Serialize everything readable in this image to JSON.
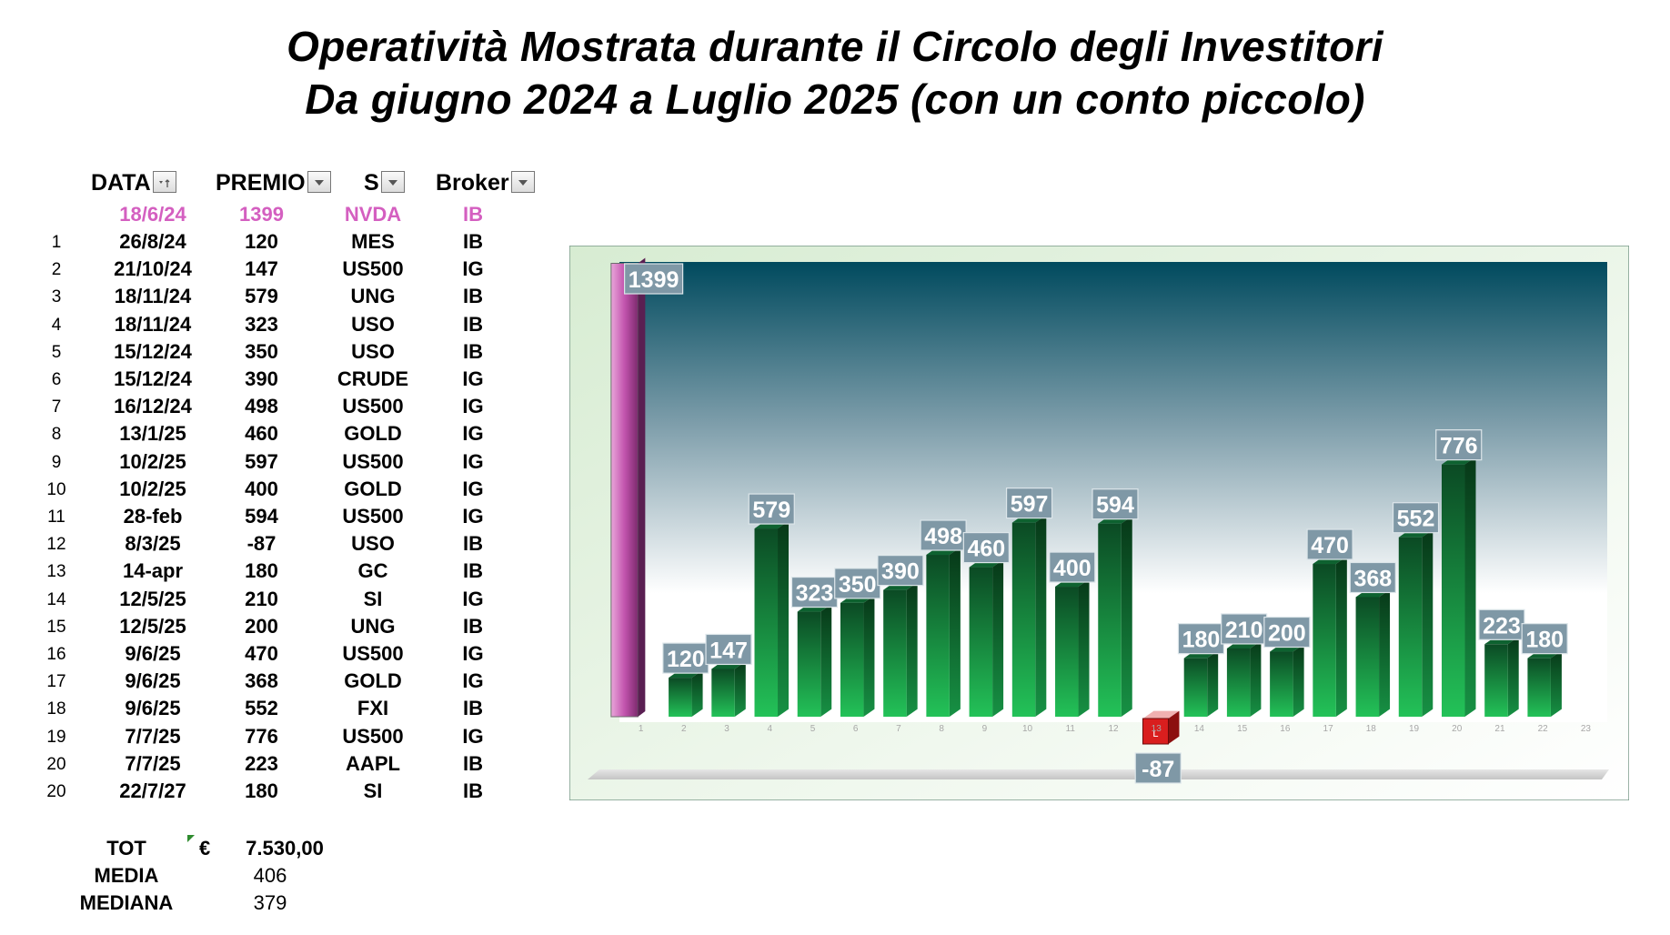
{
  "title_line1": "Operatività Mostrata durante il Circolo degli Investitori",
  "title_line2": "Da giugno 2024 a Luglio 2025 (con un conto piccolo)",
  "table": {
    "headers": {
      "date": "DATA",
      "premium": "PREMIO",
      "symbol": "S",
      "broker": "Broker"
    },
    "first_row": {
      "num": "",
      "date": "18/6/24",
      "premium": "1399",
      "symbol": "NVDA",
      "broker": "IB"
    },
    "rows": [
      {
        "num": "1",
        "date": "26/8/24",
        "premium": "120",
        "symbol": "MES",
        "broker": "IB"
      },
      {
        "num": "2",
        "date": "21/10/24",
        "premium": "147",
        "symbol": "US500",
        "broker": "IG"
      },
      {
        "num": "3",
        "date": "18/11/24",
        "premium": "579",
        "symbol": "UNG",
        "broker": "IB"
      },
      {
        "num": "4",
        "date": "18/11/24",
        "premium": "323",
        "symbol": "USO",
        "broker": "IB"
      },
      {
        "num": "5",
        "date": "15/12/24",
        "premium": "350",
        "symbol": "USO",
        "broker": "IB"
      },
      {
        "num": "6",
        "date": "15/12/24",
        "premium": "390",
        "symbol": "CRUDE",
        "broker": "IG"
      },
      {
        "num": "7",
        "date": "16/12/24",
        "premium": "498",
        "symbol": "US500",
        "broker": "IG"
      },
      {
        "num": "8",
        "date": "13/1/25",
        "premium": "460",
        "symbol": "GOLD",
        "broker": "IG"
      },
      {
        "num": "9",
        "date": "10/2/25",
        "premium": "597",
        "symbol": "US500",
        "broker": "IG"
      },
      {
        "num": "10",
        "date": "10/2/25",
        "premium": "400",
        "symbol": "GOLD",
        "broker": "IG"
      },
      {
        "num": "11",
        "date": "28-feb",
        "premium": "594",
        "symbol": "US500",
        "broker": "IG"
      },
      {
        "num": "12",
        "date": "8/3/25",
        "premium": "-87",
        "symbol": "USO",
        "broker": "IB"
      },
      {
        "num": "13",
        "date": "14-apr",
        "premium": "180",
        "symbol": "GC",
        "broker": "IB"
      },
      {
        "num": "14",
        "date": "12/5/25",
        "premium": "210",
        "symbol": "SI",
        "broker": "IG"
      },
      {
        "num": "15",
        "date": "12/5/25",
        "premium": "200",
        "symbol": "UNG",
        "broker": "IB"
      },
      {
        "num": "16",
        "date": "9/6/25",
        "premium": "470",
        "symbol": "US500",
        "broker": "IG"
      },
      {
        "num": "17",
        "date": "9/6/25",
        "premium": "368",
        "symbol": "GOLD",
        "broker": "IG"
      },
      {
        "num": "18",
        "date": "9/6/25",
        "premium": "552",
        "symbol": "FXI",
        "broker": "IB"
      },
      {
        "num": "19",
        "date": "7/7/25",
        "premium": "776",
        "symbol": "US500",
        "broker": "IG"
      },
      {
        "num": "20",
        "date": "7/7/25",
        "premium": "223",
        "symbol": "AAPL",
        "broker": "IB"
      },
      {
        "num": "20",
        "date": "22/7/27",
        "premium": "180",
        "symbol": "SI",
        "broker": "IB"
      }
    ]
  },
  "summary": {
    "tot_label": "TOT",
    "currency": "€",
    "tot_value": "7.530,00",
    "media_label": "MEDIA",
    "media_value": "406",
    "mediana_label": "MEDIANA",
    "mediana_value": "379"
  },
  "colors": {
    "highlight": "#d45fc0",
    "bar": "#1a7a3c",
    "negative": "#d91e1e",
    "label_box": "#7f98a6"
  },
  "chart_data": {
    "type": "bar",
    "title": "",
    "xlabel": "",
    "ylabel": "",
    "categories": [
      "1",
      "2",
      "3",
      "4",
      "5",
      "6",
      "7",
      "8",
      "9",
      "10",
      "11",
      "12",
      "13",
      "14",
      "15",
      "16",
      "17",
      "18",
      "19",
      "20",
      "21",
      "22",
      "23"
    ],
    "values": [
      1399,
      120,
      147,
      579,
      323,
      350,
      390,
      498,
      460,
      597,
      400,
      594,
      -87,
      180,
      210,
      200,
      470,
      368,
      552,
      776,
      223,
      180,
      null
    ],
    "data_labels": [
      "1399",
      "120",
      "147",
      "579",
      "323",
      "350",
      "390",
      "498",
      "460",
      "597",
      "400",
      "594",
      "-87",
      "180",
      "210",
      "200",
      "470",
      "368",
      "552",
      "776",
      "223",
      "180",
      ""
    ],
    "ylim": [
      -87,
      1399
    ],
    "grid": false,
    "legend": "none",
    "style": "3d-column"
  }
}
